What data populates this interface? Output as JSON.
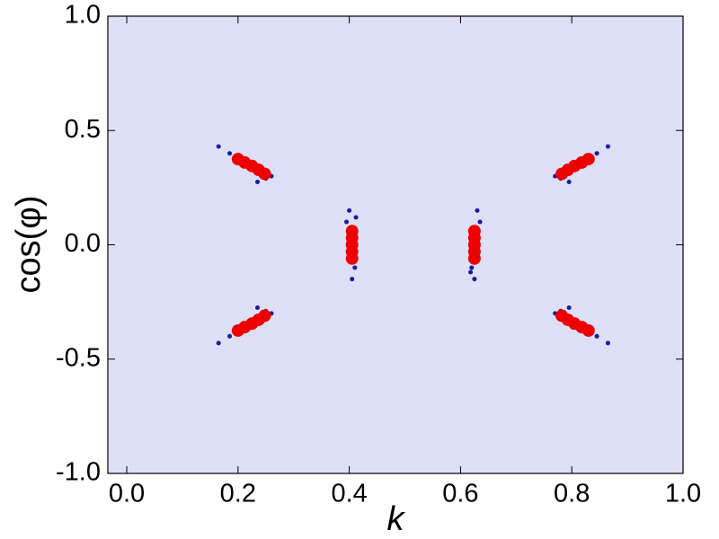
{
  "chart_data": {
    "type": "scatter",
    "x_label": "k",
    "y_label": "cos(φ)",
    "xlim": [
      -0.034,
      1.0
    ],
    "ylim": [
      -1.0,
      1.0
    ],
    "xticks": [
      {
        "value": 0,
        "label": "0.0"
      },
      0.2,
      0.4,
      0.6,
      0.8,
      {
        "value": 1,
        "label": "1.0"
      }
    ],
    "yticks": [
      {
        "value": -1,
        "label": "-1.0"
      },
      -0.5,
      {
        "value": 0,
        "label": "0.0"
      },
      0.5,
      {
        "value": 1,
        "label": "1.0"
      }
    ],
    "series": [
      {
        "color": "#1a1aa8",
        "x": [
          0.165,
          0.185,
          0.25,
          0.235,
          0.26,
          0.865,
          0.845,
          0.78,
          0.795,
          0.77,
          0.165,
          0.185,
          0.25,
          0.235,
          0.26,
          0.865,
          0.845,
          0.78,
          0.795,
          0.77,
          0.4,
          0.395,
          0.41,
          0.405,
          0.412,
          0.63,
          0.635,
          0.62,
          0.625,
          0.618
        ],
        "values": [
          0.43,
          0.4,
          0.29,
          0.275,
          0.3,
          0.43,
          0.4,
          0.29,
          0.275,
          0.3,
          -0.43,
          -0.4,
          -0.29,
          -0.275,
          -0.3,
          -0.43,
          -0.4,
          -0.29,
          -0.275,
          -0.3,
          0.15,
          0.1,
          -0.1,
          -0.15,
          0.12,
          0.15,
          0.1,
          -0.1,
          -0.15,
          -0.12
        ]
      },
      {
        "color": "#ee0000",
        "x": [
          0.2,
          0.212,
          0.225,
          0.237,
          0.248,
          0.83,
          0.818,
          0.805,
          0.793,
          0.782,
          0.2,
          0.212,
          0.225,
          0.237,
          0.248,
          0.83,
          0.818,
          0.805,
          0.793,
          0.782,
          0.405,
          0.405,
          0.405,
          0.405,
          0.405,
          0.625,
          0.625,
          0.625,
          0.625,
          0.625
        ],
        "values": [
          0.375,
          0.36,
          0.345,
          0.328,
          0.31,
          0.375,
          0.36,
          0.345,
          0.328,
          0.31,
          -0.375,
          -0.36,
          -0.345,
          -0.328,
          -0.31,
          -0.375,
          -0.36,
          -0.345,
          -0.328,
          -0.31,
          -0.06,
          -0.03,
          0,
          0.03,
          0.06,
          -0.06,
          -0.03,
          0,
          0.03,
          0.06
        ]
      }
    ]
  }
}
